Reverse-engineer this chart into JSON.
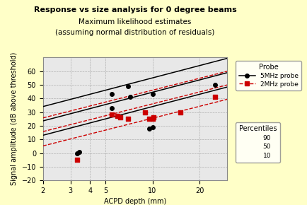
{
  "title": "Response vs size analysis for 0 degree beams",
  "subtitle1": "Maximum likelihood estimates",
  "subtitle2": "(assuming normal distribution of residuals)",
  "xlabel": "ACPD depth (mm)",
  "ylabel": "Signal amplitude (dB above threshold)",
  "background_color": "#FFFFC8",
  "plot_bg_color": "#E8E8E8",
  "xlim_log": [
    2,
    30
  ],
  "ylim": [
    -20,
    70
  ],
  "yticks": [
    -20,
    -10,
    0,
    10,
    20,
    30,
    40,
    50,
    60
  ],
  "probe5_data_x": [
    3.3,
    3.4,
    5.5,
    5.5,
    6.0,
    7.0,
    7.2,
    9.5,
    10.0,
    10.0,
    15.0,
    25.0
  ],
  "probe5_data_y": [
    0,
    1,
    33,
    43,
    27,
    49,
    41,
    18,
    43,
    19,
    30,
    50
  ],
  "probe2_data_x": [
    3.3,
    5.5,
    6.0,
    6.2,
    7.0,
    9.0,
    9.5,
    10.0,
    10.2,
    15.0,
    25.0
  ],
  "probe2_data_y": [
    -5,
    28,
    27,
    26,
    25,
    30,
    25,
    25,
    26,
    30,
    41
  ],
  "line5_p90_intercept": 25.0,
  "line5_p50_intercept": 14.5,
  "line5_p10_intercept": 4.0,
  "line5_slope": 30.0,
  "line2_p90_intercept": 17.0,
  "line2_p50_intercept": 7.0,
  "line2_p10_intercept": -3.5,
  "line2_slope": 29.0,
  "color_5mhz": "#000000",
  "color_2mhz": "#CC0000",
  "legend_probe_title": "Probe",
  "legend_5mhz": "5MHz probe",
  "legend_2mhz": "2MHz probe",
  "legend_percentiles_title": "Percentiles",
  "legend_percentiles": [
    "90",
    "50",
    "10"
  ]
}
